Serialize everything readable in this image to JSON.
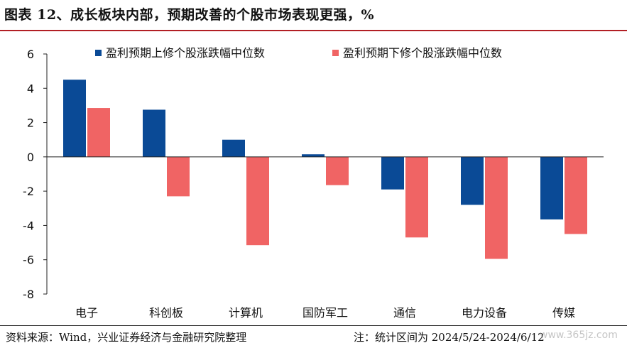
{
  "title": "图表 12、成长板块内部，预期改善的个股市场表现更强，%",
  "footer": {
    "source": "资料来源：Wind，兴业证券经济与金融研究院整理",
    "note": "注：统计区间为 2024/5/24-2024/6/12"
  },
  "watermark": "www.365jz.com",
  "colors": {
    "series1": "#0a4a96",
    "series2": "#f06464",
    "axis": "#222222",
    "title_rule": "#b21f24"
  },
  "chart_data": {
    "type": "bar",
    "categories": [
      "电子",
      "科创板",
      "计算机",
      "国防军工",
      "通信",
      "电力设备",
      "传媒"
    ],
    "series": [
      {
        "name": "盈利预期上修个股涨跌幅中位数",
        "values": [
          4.5,
          2.75,
          1.0,
          0.15,
          -1.9,
          -2.8,
          -3.65
        ]
      },
      {
        "name": "盈利预期下修个股涨跌幅中位数",
        "values": [
          2.85,
          -2.3,
          -5.15,
          -1.65,
          -4.7,
          -5.95,
          -4.5
        ]
      }
    ],
    "ylim": [
      -8,
      6
    ],
    "yticks": [
      6,
      4,
      2,
      0,
      -2,
      -4,
      -6,
      -8
    ],
    "legend_position": "top",
    "grid": false,
    "xlabel": "",
    "ylabel": ""
  }
}
